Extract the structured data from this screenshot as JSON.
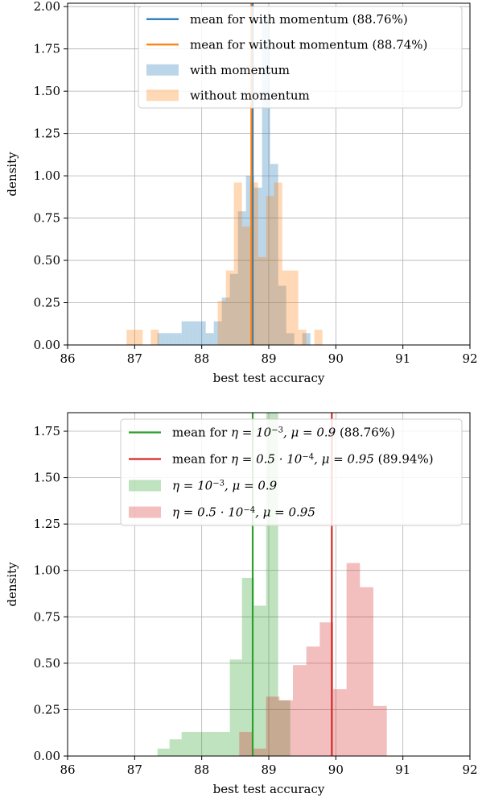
{
  "chart_data": [
    {
      "type": "histogram",
      "xlabel": "best test accuracy",
      "ylabel": "density",
      "xlim": [
        86,
        92
      ],
      "ylim": [
        0,
        2.02
      ],
      "xticks": [
        "86",
        "87",
        "88",
        "89",
        "90",
        "91",
        "92"
      ],
      "yticks": [
        "0.00",
        "0.25",
        "0.50",
        "0.75",
        "1.00",
        "1.25",
        "1.50",
        "1.75",
        "2.00"
      ],
      "grid": true,
      "legend_position": "upper right",
      "series": [
        {
          "name": "with momentum",
          "color": "#1f77b4",
          "alpha": 0.3,
          "bins": [
            {
              "x0": 87.34,
              "x1": 87.46,
              "value": 0.07
            },
            {
              "x0": 87.46,
              "x1": 87.58,
              "value": 0.07
            },
            {
              "x0": 87.58,
              "x1": 87.7,
              "value": 0.07
            },
            {
              "x0": 87.7,
              "x1": 87.82,
              "value": 0.14
            },
            {
              "x0": 87.82,
              "x1": 87.94,
              "value": 0.14
            },
            {
              "x0": 87.94,
              "x1": 88.06,
              "value": 0.14
            },
            {
              "x0": 88.06,
              "x1": 88.18,
              "value": 0.07
            },
            {
              "x0": 88.18,
              "x1": 88.3,
              "value": 0.14
            },
            {
              "x0": 88.3,
              "x1": 88.42,
              "value": 0.28
            },
            {
              "x0": 88.42,
              "x1": 88.54,
              "value": 0.42
            },
            {
              "x0": 88.54,
              "x1": 88.66,
              "value": 0.79
            },
            {
              "x0": 88.66,
              "x1": 88.78,
              "value": 1.0
            },
            {
              "x0": 88.78,
              "x1": 88.9,
              "value": 0.93
            },
            {
              "x0": 88.9,
              "x1": 89.02,
              "value": 1.93
            },
            {
              "x0": 89.02,
              "x1": 89.14,
              "value": 1.07
            },
            {
              "x0": 89.14,
              "x1": 89.26,
              "value": 0.35
            },
            {
              "x0": 89.26,
              "x1": 89.38,
              "value": 0.07
            },
            {
              "x0": 89.38,
              "x1": 89.5,
              "value": 0.0
            },
            {
              "x0": 89.5,
              "x1": 89.62,
              "value": 0.07
            }
          ]
        },
        {
          "name": "without momentum",
          "color": "#ff7f0e",
          "alpha": 0.3,
          "bins": [
            {
              "x0": 86.88,
              "x1": 87.0,
              "value": 0.09
            },
            {
              "x0": 87.0,
              "x1": 87.12,
              "value": 0.09
            },
            {
              "x0": 87.24,
              "x1": 87.36,
              "value": 0.09
            },
            {
              "x0": 88.24,
              "x1": 88.36,
              "value": 0.26
            },
            {
              "x0": 88.36,
              "x1": 88.48,
              "value": 0.44
            },
            {
              "x0": 88.48,
              "x1": 88.6,
              "value": 0.96
            },
            {
              "x0": 88.6,
              "x1": 88.72,
              "value": 0.7
            },
            {
              "x0": 88.72,
              "x1": 88.84,
              "value": 0.96
            },
            {
              "x0": 88.84,
              "x1": 88.96,
              "value": 0.52
            },
            {
              "x0": 88.96,
              "x1": 89.08,
              "value": 0.88
            },
            {
              "x0": 89.08,
              "x1": 89.2,
              "value": 0.96
            },
            {
              "x0": 89.2,
              "x1": 89.32,
              "value": 0.44
            },
            {
              "x0": 89.32,
              "x1": 89.44,
              "value": 0.44
            },
            {
              "x0": 89.44,
              "x1": 89.56,
              "value": 0.09
            },
            {
              "x0": 89.68,
              "x1": 89.8,
              "value": 0.09
            }
          ]
        }
      ],
      "mean_lines": [
        {
          "name": "mean for with momentum (88.76%)",
          "x": 88.76,
          "color": "#1f77b4"
        },
        {
          "name": "mean for without momentum (88.74%)",
          "x": 88.74,
          "color": "#ff7f0e"
        }
      ]
    },
    {
      "type": "histogram",
      "xlabel": "best test accuracy",
      "ylabel": "density",
      "xlim": [
        86,
        92
      ],
      "ylim": [
        0,
        1.85
      ],
      "xticks": [
        "86",
        "87",
        "88",
        "89",
        "90",
        "91",
        "92"
      ],
      "yticks": [
        "0.00",
        "0.25",
        "0.50",
        "0.75",
        "1.00",
        "1.25",
        "1.50",
        "1.75"
      ],
      "grid": true,
      "legend_position": "upper right",
      "series": [
        {
          "name": "η = 10^−3, μ = 0.9",
          "color": "#2ca02c",
          "alpha": 0.3,
          "bins": [
            {
              "x0": 87.34,
              "x1": 87.52,
              "value": 0.04
            },
            {
              "x0": 87.52,
              "x1": 87.7,
              "value": 0.09
            },
            {
              "x0": 87.7,
              "x1": 87.88,
              "value": 0.13
            },
            {
              "x0": 87.88,
              "x1": 88.06,
              "value": 0.13
            },
            {
              "x0": 88.06,
              "x1": 88.24,
              "value": 0.13
            },
            {
              "x0": 88.24,
              "x1": 88.42,
              "value": 0.13
            },
            {
              "x0": 88.42,
              "x1": 88.6,
              "value": 0.52
            },
            {
              "x0": 88.6,
              "x1": 88.78,
              "value": 0.96
            },
            {
              "x0": 88.78,
              "x1": 88.96,
              "value": 0.81
            },
            {
              "x0": 88.96,
              "x1": 89.14,
              "value": 1.85
            },
            {
              "x0": 89.14,
              "x1": 89.32,
              "value": 0.3
            }
          ]
        },
        {
          "name": "η = 0.5 · 10^−4, μ = 0.95",
          "color": "#d62728",
          "alpha": 0.3,
          "bins": [
            {
              "x0": 88.56,
              "x1": 88.76,
              "value": 0.13
            },
            {
              "x0": 88.76,
              "x1": 88.96,
              "value": 0.04
            },
            {
              "x0": 88.96,
              "x1": 89.16,
              "value": 0.32
            },
            {
              "x0": 89.16,
              "x1": 89.36,
              "value": 0.3
            },
            {
              "x0": 89.36,
              "x1": 89.56,
              "value": 0.49
            },
            {
              "x0": 89.56,
              "x1": 89.76,
              "value": 0.59
            },
            {
              "x0": 89.76,
              "x1": 89.96,
              "value": 0.72
            },
            {
              "x0": 89.96,
              "x1": 90.16,
              "value": 0.36
            },
            {
              "x0": 90.16,
              "x1": 90.36,
              "value": 1.04
            },
            {
              "x0": 90.36,
              "x1": 90.56,
              "value": 0.91
            },
            {
              "x0": 90.56,
              "x1": 90.76,
              "value": 0.27
            }
          ]
        }
      ],
      "mean_lines": [
        {
          "name": "mean for η = 10^−3, μ = 0.9 (88.76%)",
          "x": 88.76,
          "color": "#2ca02c"
        },
        {
          "name": "mean for η = 0.5 · 10^−4, μ = 0.95 (89.94%)",
          "x": 89.94,
          "color": "#d62728"
        }
      ]
    }
  ],
  "legends": [
    {
      "items": [
        {
          "kind": "line",
          "color": "#1f77b4",
          "text": "mean for with momentum (88.76%)"
        },
        {
          "kind": "line",
          "color": "#ff7f0e",
          "text": "mean for without momentum (88.74%)"
        },
        {
          "kind": "patch",
          "color": "#1f77b4",
          "text": "with momentum"
        },
        {
          "kind": "patch",
          "color": "#ff7f0e",
          "text": "without momentum"
        }
      ]
    },
    {
      "items": [
        {
          "kind": "line",
          "color": "#2ca02c",
          "prefix": "mean for ",
          "eta": "η = 10",
          "eta_exp": "−3",
          "mu": ", μ = 0.9",
          "suffix": " (88.76%)"
        },
        {
          "kind": "line",
          "color": "#d62728",
          "prefix": "mean for ",
          "eta": "η = 0.5 · 10",
          "eta_exp": "−4",
          "mu": ", μ = 0.95",
          "suffix": " (89.94%)"
        },
        {
          "kind": "patch",
          "color": "#2ca02c",
          "prefix": "",
          "eta": "η = 10",
          "eta_exp": "−3",
          "mu": ", μ = 0.9",
          "suffix": ""
        },
        {
          "kind": "patch",
          "color": "#d62728",
          "prefix": "",
          "eta": "η = 0.5 · 10",
          "eta_exp": "−4",
          "mu": ", μ = 0.95",
          "suffix": ""
        }
      ]
    }
  ]
}
